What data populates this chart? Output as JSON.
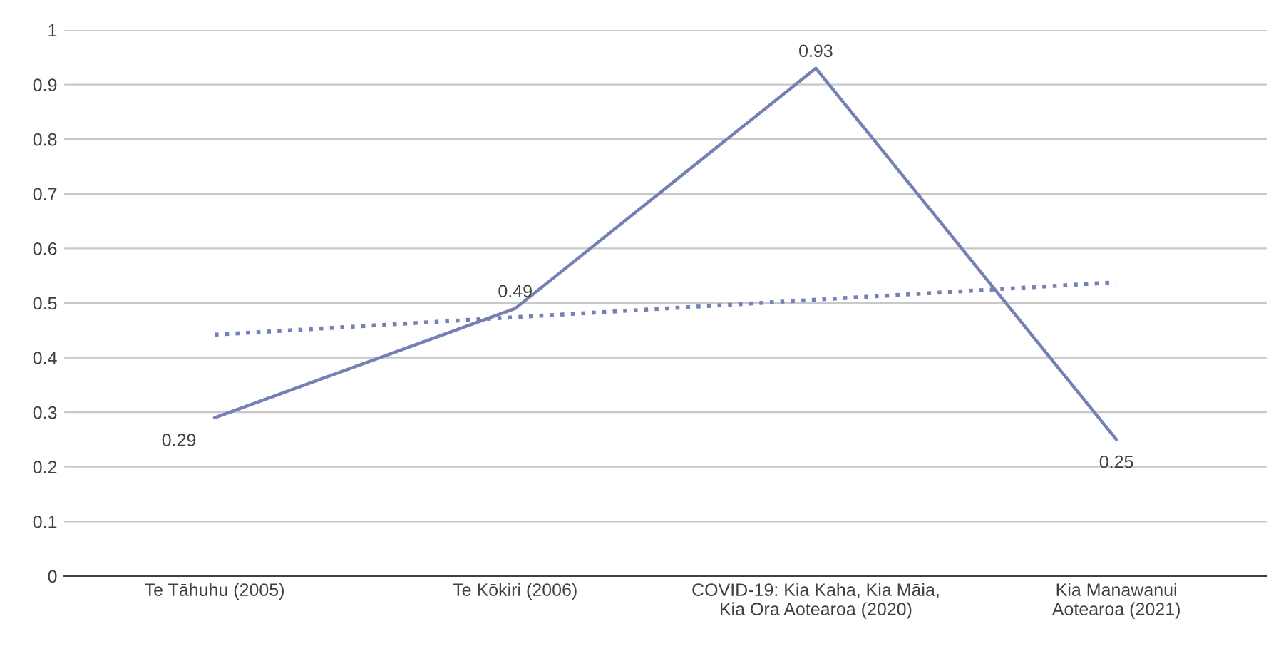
{
  "chart_data": {
    "type": "line",
    "categories": [
      "Te Tāhuhu (2005)",
      "Te Kōkiri (2006)",
      "COVID-19: Kia Kaha, Kia Māia,\nKia Ora Aotearoa (2020)",
      "Kia Manawanui\nAotearoa (2021)"
    ],
    "series": [
      {
        "color": "#7580b5",
        "values": [
          0.29,
          0.49,
          0.93,
          0.25
        ],
        "value_labels": [
          "0.29",
          "0.49",
          "0.93",
          "0.25"
        ],
        "line_style": "solid"
      },
      {
        "type": "line",
        "color": "#7580b5",
        "values": [
          0.442,
          0.474,
          0.506,
          0.538
        ],
        "line_style": "dotted"
      }
    ],
    "ylim": [
      0,
      1
    ],
    "yticks": [
      0,
      0.1,
      0.2,
      0.3,
      0.4,
      0.5,
      0.6,
      0.7,
      0.8,
      0.9,
      1
    ],
    "grid": "y",
    "legend": false
  }
}
